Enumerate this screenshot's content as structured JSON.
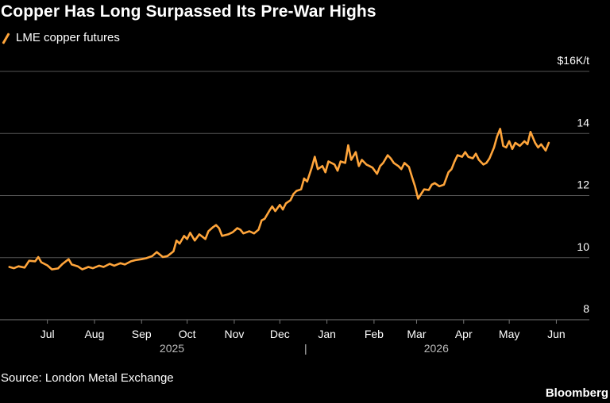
{
  "title": "Copper Has Long Surpassed Its Pre-War Highs",
  "source": "Source: London Metal Exchange",
  "brand": "Bloomberg",
  "colors": {
    "background": "#000000",
    "line": "#ffa53b",
    "grid": "#555555",
    "text": "#ffffff"
  },
  "chart_data": {
    "type": "line",
    "legend": "top-left",
    "grid": true,
    "x_axis": {
      "range": [
        "2025-06-18",
        "2026-06-20"
      ],
      "ticks": [
        {
          "label": "Jul",
          "date": "2025-07-15"
        },
        {
          "label": "Aug",
          "date": "2025-08-15"
        },
        {
          "label": "Sep",
          "date": "2025-09-15"
        },
        {
          "label": "Oct",
          "date": "2025-10-15"
        },
        {
          "label": "Nov",
          "date": "2025-11-15"
        },
        {
          "label": "Dec",
          "date": "2025-12-15"
        },
        {
          "label": "Jan",
          "date": "2026-01-15"
        },
        {
          "label": "Feb",
          "date": "2026-02-15"
        },
        {
          "label": "Mar",
          "date": "2026-03-15"
        },
        {
          "label": "Apr",
          "date": "2026-04-15"
        },
        {
          "label": "May",
          "date": "2026-05-15"
        },
        {
          "label": "Jun",
          "date": "2026-06-15"
        }
      ],
      "years": [
        {
          "label": "2025",
          "date": "2025-10-05"
        },
        {
          "label": "2026",
          "date": "2026-03-28"
        }
      ],
      "year_divider": "|",
      "year_divider_date": "2026-01-01"
    },
    "y_axis": {
      "range": [
        8,
        16
      ],
      "ticks": [
        {
          "value": 16,
          "label": "$16K/t"
        },
        {
          "value": 14,
          "label": "14"
        },
        {
          "value": 12,
          "label": "12"
        },
        {
          "value": 10,
          "label": "10"
        },
        {
          "value": 8,
          "label": "8"
        }
      ]
    },
    "series": [
      {
        "name": "LME copper futures",
        "points": [
          [
            "2025-06-20",
            9.7
          ],
          [
            "2025-06-23",
            9.66
          ],
          [
            "2025-06-26",
            9.72
          ],
          [
            "2025-06-30",
            9.68
          ],
          [
            "2025-07-03",
            9.9
          ],
          [
            "2025-07-07",
            9.88
          ],
          [
            "2025-07-09",
            10.02
          ],
          [
            "2025-07-11",
            9.85
          ],
          [
            "2025-07-15",
            9.75
          ],
          [
            "2025-07-18",
            9.62
          ],
          [
            "2025-07-22",
            9.65
          ],
          [
            "2025-07-25",
            9.8
          ],
          [
            "2025-07-29",
            9.95
          ],
          [
            "2025-07-31",
            9.78
          ],
          [
            "2025-08-04",
            9.72
          ],
          [
            "2025-08-07",
            9.62
          ],
          [
            "2025-08-11",
            9.7
          ],
          [
            "2025-08-14",
            9.66
          ],
          [
            "2025-08-18",
            9.74
          ],
          [
            "2025-08-21",
            9.7
          ],
          [
            "2025-08-25",
            9.8
          ],
          [
            "2025-08-28",
            9.74
          ],
          [
            "2025-09-01",
            9.82
          ],
          [
            "2025-09-04",
            9.78
          ],
          [
            "2025-09-08",
            9.88
          ],
          [
            "2025-09-11",
            9.92
          ],
          [
            "2025-09-15",
            9.95
          ],
          [
            "2025-09-18",
            9.98
          ],
          [
            "2025-09-22",
            10.05
          ],
          [
            "2025-09-25",
            10.18
          ],
          [
            "2025-09-29",
            10.02
          ],
          [
            "2025-10-02",
            10.05
          ],
          [
            "2025-10-06",
            10.2
          ],
          [
            "2025-10-08",
            10.55
          ],
          [
            "2025-10-10",
            10.45
          ],
          [
            "2025-10-13",
            10.7
          ],
          [
            "2025-10-15",
            10.6
          ],
          [
            "2025-10-17",
            10.8
          ],
          [
            "2025-10-20",
            10.55
          ],
          [
            "2025-10-23",
            10.75
          ],
          [
            "2025-10-27",
            10.6
          ],
          [
            "2025-10-29",
            10.85
          ],
          [
            "2025-11-01",
            10.98
          ],
          [
            "2025-11-03",
            11.05
          ],
          [
            "2025-11-05",
            10.95
          ],
          [
            "2025-11-07",
            10.7
          ],
          [
            "2025-11-11",
            10.75
          ],
          [
            "2025-11-14",
            10.82
          ],
          [
            "2025-11-17",
            10.95
          ],
          [
            "2025-11-19",
            10.9
          ],
          [
            "2025-11-21",
            10.78
          ],
          [
            "2025-11-25",
            10.85
          ],
          [
            "2025-11-28",
            10.78
          ],
          [
            "2025-12-01",
            10.9
          ],
          [
            "2025-12-03",
            11.2
          ],
          [
            "2025-12-05",
            11.25
          ],
          [
            "2025-12-08",
            11.5
          ],
          [
            "2025-12-10",
            11.65
          ],
          [
            "2025-12-12",
            11.5
          ],
          [
            "2025-12-15",
            11.7
          ],
          [
            "2025-12-17",
            11.55
          ],
          [
            "2025-12-19",
            11.75
          ],
          [
            "2025-12-22",
            11.85
          ],
          [
            "2025-12-24",
            12.05
          ],
          [
            "2025-12-26",
            12.15
          ],
          [
            "2025-12-29",
            12.2
          ],
          [
            "2025-12-31",
            12.55
          ],
          [
            "2026-01-02",
            12.45
          ],
          [
            "2026-01-05",
            12.9
          ],
          [
            "2026-01-07",
            13.25
          ],
          [
            "2026-01-09",
            12.85
          ],
          [
            "2026-01-12",
            12.95
          ],
          [
            "2026-01-14",
            12.75
          ],
          [
            "2026-01-16",
            13.1
          ],
          [
            "2026-01-20",
            13.0
          ],
          [
            "2026-01-22",
            12.8
          ],
          [
            "2026-01-24",
            13.1
          ],
          [
            "2026-01-27",
            13.05
          ],
          [
            "2026-01-29",
            13.62
          ],
          [
            "2026-01-31",
            13.15
          ],
          [
            "2026-02-03",
            13.4
          ],
          [
            "2026-02-05",
            12.95
          ],
          [
            "2026-02-07",
            13.15
          ],
          [
            "2026-02-10",
            13.0
          ],
          [
            "2026-02-12",
            12.95
          ],
          [
            "2026-02-14",
            12.9
          ],
          [
            "2026-02-17",
            12.7
          ],
          [
            "2026-02-19",
            12.95
          ],
          [
            "2026-02-21",
            13.05
          ],
          [
            "2026-02-24",
            13.3
          ],
          [
            "2026-02-26",
            13.2
          ],
          [
            "2026-02-28",
            13.05
          ],
          [
            "2026-03-03",
            12.95
          ],
          [
            "2026-03-05",
            12.85
          ],
          [
            "2026-03-07",
            13.05
          ],
          [
            "2026-03-10",
            12.92
          ],
          [
            "2026-03-12",
            12.6
          ],
          [
            "2026-03-14",
            12.3
          ],
          [
            "2026-03-16",
            11.9
          ],
          [
            "2026-03-18",
            12.05
          ],
          [
            "2026-03-20",
            12.2
          ],
          [
            "2026-03-23",
            12.18
          ],
          [
            "2026-03-25",
            12.35
          ],
          [
            "2026-03-27",
            12.4
          ],
          [
            "2026-03-30",
            12.3
          ],
          [
            "2026-04-02",
            12.35
          ],
          [
            "2026-04-05",
            12.75
          ],
          [
            "2026-04-07",
            12.85
          ],
          [
            "2026-04-09",
            13.1
          ],
          [
            "2026-04-11",
            13.3
          ],
          [
            "2026-04-14",
            13.25
          ],
          [
            "2026-04-16",
            13.4
          ],
          [
            "2026-04-18",
            13.25
          ],
          [
            "2026-04-21",
            13.2
          ],
          [
            "2026-04-23",
            13.35
          ],
          [
            "2026-04-25",
            13.15
          ],
          [
            "2026-04-28",
            13.0
          ],
          [
            "2026-04-30",
            13.05
          ],
          [
            "2026-05-02",
            13.2
          ],
          [
            "2026-05-05",
            13.55
          ],
          [
            "2026-05-07",
            13.9
          ],
          [
            "2026-05-09",
            14.15
          ],
          [
            "2026-05-11",
            13.6
          ],
          [
            "2026-05-13",
            13.55
          ],
          [
            "2026-05-15",
            13.75
          ],
          [
            "2026-05-17",
            13.5
          ],
          [
            "2026-05-19",
            13.7
          ],
          [
            "2026-05-22",
            13.6
          ],
          [
            "2026-05-25",
            13.75
          ],
          [
            "2026-05-27",
            13.65
          ],
          [
            "2026-05-29",
            14.05
          ],
          [
            "2026-06-01",
            13.7
          ],
          [
            "2026-06-03",
            13.55
          ],
          [
            "2026-06-05",
            13.65
          ],
          [
            "2026-06-08",
            13.45
          ],
          [
            "2026-06-10",
            13.7
          ]
        ]
      }
    ]
  }
}
